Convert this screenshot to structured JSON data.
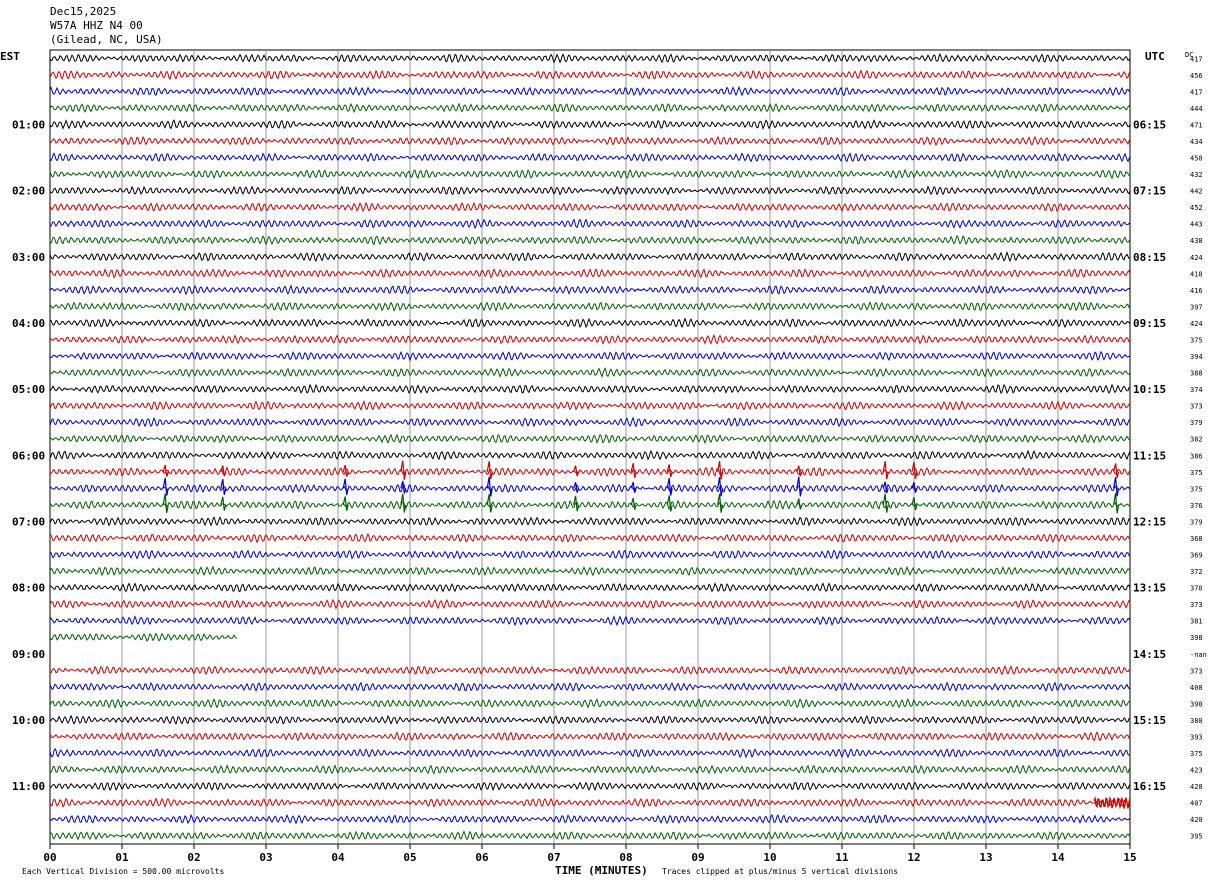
{
  "header": {
    "date": "Dec15,2025",
    "station": "W57A HHZ N4 00",
    "location": "(Gilead, NC, USA)"
  },
  "left_tz": "EST",
  "right_tz": "UTC",
  "dc_label": "DC",
  "footer": {
    "scale_note": "Each Vertical Division =  500.00 microvolts",
    "time_label": "TIME (MINUTES)",
    "clip_note": "Traces clipped at plus/minus 5 vertical divisions"
  },
  "colors": {
    "cycle": [
      "#000000",
      "#d00000",
      "#0000d0",
      "#006000"
    ],
    "grid": "#808080"
  },
  "chart_data": {
    "type": "line",
    "title": "W57A HHZ N4 00 (Gilead, NC, USA) Dec15,2025",
    "xlabel": "TIME (MINUTES)",
    "ylabel": "",
    "xlim": [
      0,
      15
    ],
    "x_ticks": [
      "00",
      "01",
      "02",
      "03",
      "04",
      "05",
      "06",
      "07",
      "08",
      "09",
      "10",
      "11",
      "12",
      "13",
      "14",
      "15"
    ],
    "row_count": 48,
    "left_hour_labels": [
      {
        "row": 4,
        "label": "01:00"
      },
      {
        "row": 8,
        "label": "02:00"
      },
      {
        "row": 12,
        "label": "03:00"
      },
      {
        "row": 16,
        "label": "04:00"
      },
      {
        "row": 20,
        "label": "05:00"
      },
      {
        "row": 24,
        "label": "06:00"
      },
      {
        "row": 28,
        "label": "07:00"
      },
      {
        "row": 32,
        "label": "08:00"
      },
      {
        "row": 36,
        "label": "09:00"
      },
      {
        "row": 40,
        "label": "10:00"
      },
      {
        "row": 44,
        "label": "11:00"
      }
    ],
    "right_hour_labels": [
      {
        "row": 4,
        "label": "06:15"
      },
      {
        "row": 8,
        "label": "07:15"
      },
      {
        "row": 12,
        "label": "08:15"
      },
      {
        "row": 16,
        "label": "09:15"
      },
      {
        "row": 20,
        "label": "10:15"
      },
      {
        "row": 24,
        "label": "11:15"
      },
      {
        "row": 28,
        "label": "12:15"
      },
      {
        "row": 32,
        "label": "13:15"
      },
      {
        "row": 36,
        "label": "14:15"
      },
      {
        "row": 40,
        "label": "15:15"
      },
      {
        "row": 44,
        "label": "16:15"
      }
    ],
    "dc_offsets": [
      "417",
      "456",
      "417",
      "444",
      "471",
      "434",
      "450",
      "432",
      "442",
      "452",
      "443",
      "438",
      "424",
      "418",
      "416",
      "397",
      "424",
      "375",
      "394",
      "388",
      "374",
      "373",
      "379",
      "382",
      "386",
      "375",
      "375",
      "376",
      "379",
      "368",
      "369",
      "372",
      "370",
      "373",
      "381",
      "398",
      "-nan",
      "373",
      "408",
      "390",
      "380",
      "393",
      "375",
      "423",
      "420",
      "407",
      "420",
      "395"
    ],
    "gaps": [
      {
        "row": 35,
        "trace_ends_at_minute": 2.6
      },
      {
        "row": 36,
        "trace_ends_at_minute": 0
      }
    ],
    "events": [
      {
        "rows": [
          25,
          26,
          27
        ],
        "minutes": [
          1.6,
          2.4,
          4.1,
          4.9,
          6.1,
          7.3,
          8.1,
          8.6,
          9.3,
          10.4,
          11.6,
          12.0,
          14.8
        ],
        "note": "spikes"
      },
      {
        "rows": [
          45
        ],
        "minutes": [
          14.5,
          15.0
        ],
        "note": "high amplitude burst"
      }
    ],
    "colors_cycle": [
      "black",
      "red",
      "blue",
      "green"
    ],
    "grid": true
  }
}
